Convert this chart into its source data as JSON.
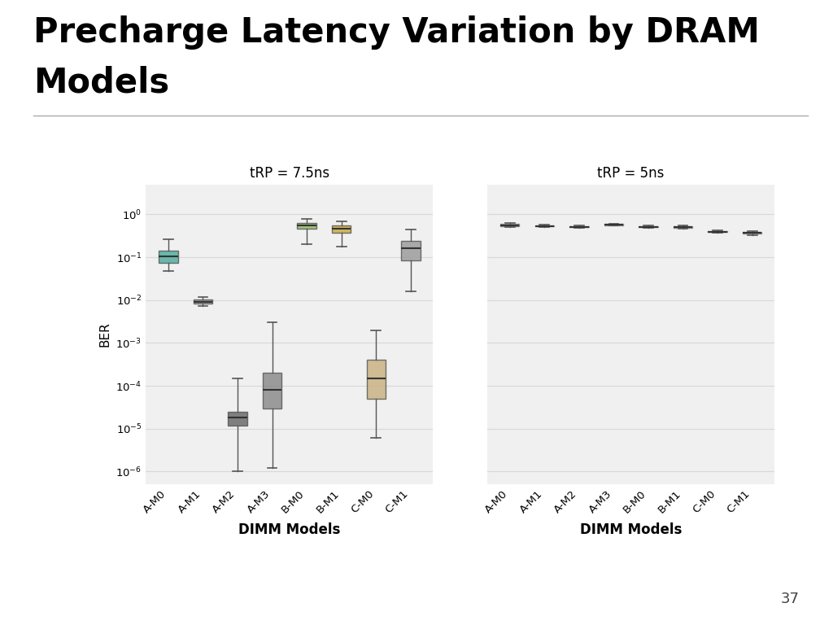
{
  "title_line1": "Precharge Latency Variation by DRAM",
  "title_line2": "Models",
  "subtitle_left": "tRP = 7.5ns",
  "subtitle_right": "tRP = 5ns",
  "xlabel": "DIMM Models",
  "ylabel": "BER",
  "categories": [
    "A-M0",
    "A-M1",
    "A-M2",
    "A-M3",
    "B-M0",
    "B-M1",
    "C-M0",
    "C-M1"
  ],
  "colors_left": [
    "#4dab9e",
    "#888888",
    "#666666",
    "#888888",
    "#8db860",
    "#c8a83c",
    "#c8b080",
    "#9a9a9a"
  ],
  "colors_right": [
    "#4dab9e",
    "#cccccc",
    "#cccccc",
    "#d490a0",
    "#cccccc",
    "#cccccc",
    "#c8b080",
    "#9a9a9a"
  ],
  "plot1_data": {
    "A-M0": {
      "q1": 0.075,
      "median": 0.105,
      "q3": 0.145,
      "whislo": 0.048,
      "whishi": 0.26
    },
    "A-M1": {
      "q1": 0.0082,
      "median": 0.0092,
      "q3": 0.0105,
      "whislo": 0.0072,
      "whishi": 0.012
    },
    "A-M2": {
      "q1": 1.2e-05,
      "median": 1.8e-05,
      "q3": 2.5e-05,
      "whislo": 1e-06,
      "whishi": 0.00015
    },
    "A-M3": {
      "q1": 3e-05,
      "median": 8e-05,
      "q3": 0.0002,
      "whislo": 1.2e-06,
      "whishi": 0.003
    },
    "B-M0": {
      "q1": 0.47,
      "median": 0.56,
      "q3": 0.63,
      "whislo": 0.2,
      "whishi": 0.78
    },
    "B-M1": {
      "q1": 0.37,
      "median": 0.46,
      "q3": 0.55,
      "whislo": 0.18,
      "whishi": 0.7
    },
    "C-M0": {
      "q1": 5e-05,
      "median": 0.00015,
      "q3": 0.0004,
      "whislo": 6e-06,
      "whishi": 0.002
    },
    "C-M1": {
      "q1": 0.085,
      "median": 0.16,
      "q3": 0.24,
      "whislo": 0.016,
      "whishi": 0.44
    }
  },
  "plot2_data": {
    "A-M0": {
      "q1": 0.52,
      "median": 0.56,
      "q3": 0.6,
      "whislo": 0.5,
      "whishi": 0.62
    },
    "A-M1": {
      "q1": 0.52,
      "median": 0.535,
      "q3": 0.55,
      "whislo": 0.5,
      "whishi": 0.57
    },
    "A-M2": {
      "q1": 0.5,
      "median": 0.515,
      "q3": 0.53,
      "whislo": 0.48,
      "whishi": 0.55
    },
    "A-M3": {
      "q1": 0.56,
      "median": 0.575,
      "q3": 0.59,
      "whislo": 0.54,
      "whishi": 0.61
    },
    "B-M0": {
      "q1": 0.5,
      "median": 0.515,
      "q3": 0.53,
      "whislo": 0.48,
      "whishi": 0.55
    },
    "B-M1": {
      "q1": 0.49,
      "median": 0.505,
      "q3": 0.52,
      "whislo": 0.47,
      "whishi": 0.54
    },
    "C-M0": {
      "q1": 0.38,
      "median": 0.395,
      "q3": 0.41,
      "whislo": 0.37,
      "whishi": 0.43
    },
    "C-M1": {
      "q1": 0.35,
      "median": 0.365,
      "q3": 0.38,
      "whislo": 0.33,
      "whishi": 0.4
    }
  },
  "ylim_left": [
    5e-07,
    5
  ],
  "ylim_right": [
    5e-07,
    5
  ],
  "fig_bg": "#ffffff",
  "plot_bg": "#f0f0f0",
  "grid_color": "#d8d8d8",
  "page_number": "37",
  "title_fontsize": 30,
  "axis_fontsize": 11,
  "tick_fontsize": 9.5
}
